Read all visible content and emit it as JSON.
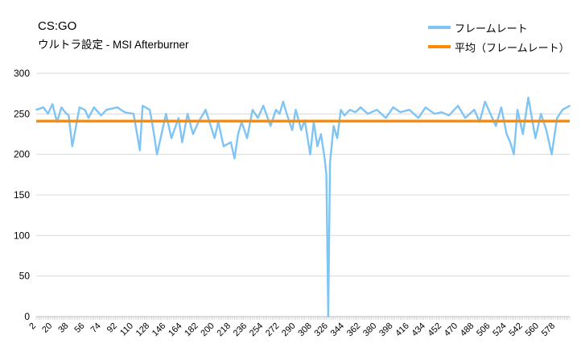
{
  "chart_data": {
    "type": "line",
    "title": "CS:GO",
    "subtitle": "ウルトラ設定 - MSI Afterburner",
    "ylim": [
      0,
      300
    ],
    "yticks": [
      0,
      50,
      100,
      150,
      200,
      250,
      300
    ],
    "x_range": [
      2,
      594
    ],
    "xtick_labels": [
      "2",
      "20",
      "38",
      "56",
      "74",
      "92",
      "110",
      "128",
      "146",
      "164",
      "182",
      "200",
      "218",
      "236",
      "254",
      "272",
      "290",
      "308",
      "326",
      "344",
      "362",
      "380",
      "398",
      "416",
      "434",
      "452",
      "470",
      "488",
      "506",
      "524",
      "542",
      "560",
      "578"
    ],
    "grid": "horizontal",
    "legend_position": "top-right",
    "colors": {
      "fps": "#7ec4f5",
      "average": "#ff8c00",
      "grid": "#d9d9d9"
    },
    "series": [
      {
        "name": "フレームレート",
        "x": [
          2,
          10,
          15,
          20,
          25,
          30,
          34,
          38,
          42,
          50,
          56,
          60,
          66,
          74,
          80,
          92,
          100,
          110,
          117,
          120,
          128,
          132,
          136,
          146,
          152,
          160,
          164,
          170,
          176,
          182,
          190,
          200,
          204,
          210,
          218,
          222,
          226,
          230,
          236,
          242,
          248,
          254,
          262,
          268,
          272,
          276,
          280,
          286,
          290,
          296,
          300,
          306,
          310,
          314,
          318,
          322,
          324,
          326,
          328,
          332,
          336,
          340,
          344,
          350,
          356,
          362,
          370,
          380,
          390,
          398,
          406,
          416,
          426,
          434,
          444,
          452,
          460,
          470,
          478,
          488,
          494,
          500,
          506,
          512,
          518,
          524,
          528,
          532,
          536,
          542,
          548,
          556,
          562,
          568,
          574,
          580,
          586,
          594
        ],
        "values": [
          255,
          258,
          250,
          262,
          240,
          258,
          252,
          248,
          210,
          258,
          255,
          245,
          258,
          248,
          255,
          258,
          252,
          250,
          205,
          260,
          255,
          230,
          200,
          250,
          220,
          245,
          215,
          250,
          225,
          240,
          255,
          220,
          240,
          210,
          215,
          195,
          225,
          240,
          220,
          255,
          245,
          260,
          235,
          255,
          250,
          265,
          250,
          230,
          255,
          230,
          242,
          200,
          240,
          210,
          225,
          195,
          175,
          0,
          190,
          235,
          220,
          255,
          248,
          255,
          252,
          258,
          250,
          255,
          245,
          258,
          252,
          255,
          245,
          258,
          250,
          252,
          248,
          260,
          245,
          255,
          240,
          265,
          250,
          235,
          258,
          225,
          215,
          200,
          255,
          225,
          270,
          220,
          250,
          230,
          200,
          245,
          255,
          260
        ]
      },
      {
        "name": "平均（フレームレート）",
        "x": [
          2,
          594
        ],
        "values": [
          241,
          241
        ]
      }
    ]
  }
}
